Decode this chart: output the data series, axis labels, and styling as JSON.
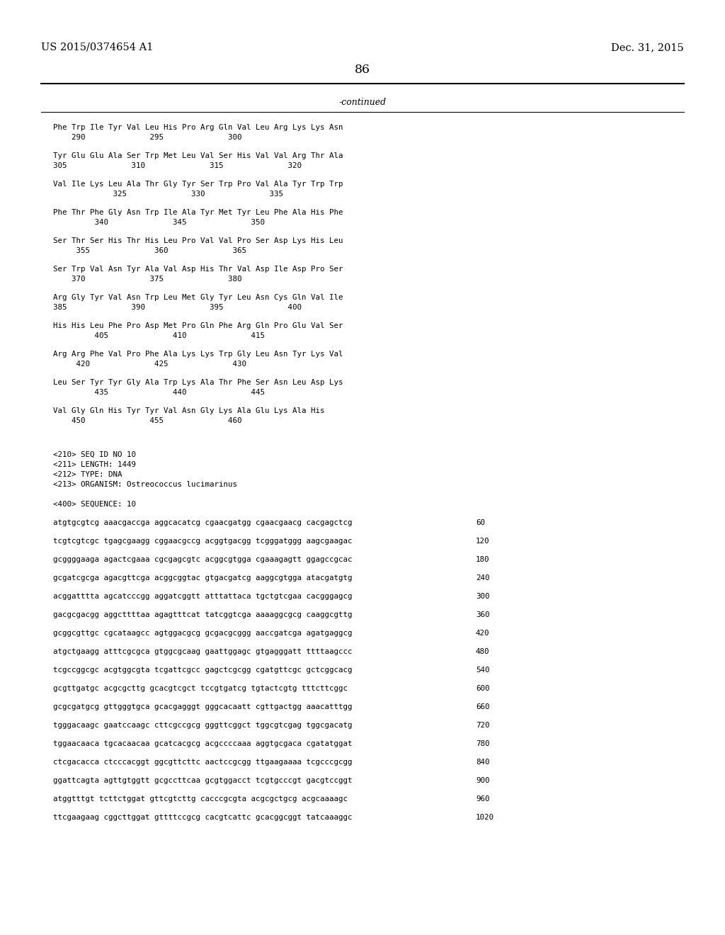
{
  "header_left": "US 2015/0374654 A1",
  "header_right": "Dec. 31, 2015",
  "page_number": "86",
  "continued_label": "-continued",
  "background_color": "#ffffff",
  "text_color": "#000000",
  "amino_lines": [
    [
      "Phe Trp Ile Tyr Val Leu His Pro Arg Gln Val Leu Arg Lys Lys Asn",
      "    290              295              300"
    ],
    [
      "Tyr Glu Glu Ala Ser Trp Met Leu Val Ser His Val Val Arg Thr Ala",
      "305              310              315              320"
    ],
    [
      "Val Ile Lys Leu Ala Thr Gly Tyr Ser Trp Pro Val Ala Tyr Trp Trp",
      "             325              330              335"
    ],
    [
      "Phe Thr Phe Gly Asn Trp Ile Ala Tyr Met Tyr Leu Phe Ala His Phe",
      "         340              345              350"
    ],
    [
      "Ser Thr Ser His Thr His Leu Pro Val Val Pro Ser Asp Lys His Leu",
      "     355              360              365"
    ],
    [
      "Ser Trp Val Asn Tyr Ala Val Asp His Thr Val Asp Ile Asp Pro Ser",
      "    370              375              380"
    ],
    [
      "Arg Gly Tyr Val Asn Trp Leu Met Gly Tyr Leu Asn Cys Gln Val Ile",
      "385              390              395              400"
    ],
    [
      "His His Leu Phe Pro Asp Met Pro Gln Phe Arg Gln Pro Glu Val Ser",
      "         405              410              415"
    ],
    [
      "Arg Arg Phe Val Pro Phe Ala Lys Lys Trp Gly Leu Asn Tyr Lys Val",
      "     420              425              430"
    ],
    [
      "Leu Ser Tyr Tyr Gly Ala Trp Lys Ala Thr Phe Ser Asn Leu Asp Lys",
      "         435              440              445"
    ],
    [
      "Val Gly Gln His Tyr Tyr Val Asn Gly Lys Ala Glu Lys Ala His",
      "    450              455              460"
    ]
  ],
  "seq_info": [
    "<210> SEQ ID NO 10",
    "<211> LENGTH: 1449",
    "<212> TYPE: DNA",
    "<213> ORGANISM: Ostreococcus lucimarinus"
  ],
  "seq_label": "<400> SEQUENCE: 10",
  "dna_lines": [
    [
      "atgtgcgtcg aaacgaccga aggcacatcg cgaacgatgg cgaacgaacg cacgagctcg",
      "60"
    ],
    [
      "tcgtcgtcgc tgagcgaagg cggaacgccg acggtgacgg tcgggatggg aagcgaagac",
      "120"
    ],
    [
      "gcggggaaga agactcgaaa cgcgagcgtc acggcgtgga cgaaagagtt ggagccgcac",
      "180"
    ],
    [
      "gcgatcgcga agacgttcga acggcggtac gtgacgatcg aaggcgtgga atacgatgtg",
      "240"
    ],
    [
      "acggatttta agcatcccgg aggatcggtt atttattaca tgctgtcgaa cacgggagcg",
      "300"
    ],
    [
      "gacgcgacgg aggcttttaa agagtttcat tatcggtcga aaaaggcgcg caaggcgttg",
      "360"
    ],
    [
      "gcggcgttgc cgcataagcc agtggacgcg gcgacgcggg aaccgatcga agatgaggcg",
      "420"
    ],
    [
      "atgctgaagg atttcgcgca gtggcgcaag gaattggagc gtgagggatt ttttaagccc",
      "480"
    ],
    [
      "tcgccggcgc acgtggcgta tcgattcgcc gagctcgcgg cgatgttcgc gctcggcacg",
      "540"
    ],
    [
      "gcgttgatgc acgcgcttg gcacgtcgct tccgtgatcg tgtactcgtg tttcttcggc",
      "600"
    ],
    [
      "gcgcgatgcg gttgggtgca gcacgagggt gggcacaatt cgttgactgg aaacatttgg",
      "660"
    ],
    [
      "tgggacaagc gaatccaagc cttcgccgcg gggttcggct tggcgtcgag tggcgacatg",
      "720"
    ],
    [
      "tggaacaaca tgcacaacaa gcatcacgcg acgccccaaa aggtgcgaca cgatatggat",
      "780"
    ],
    [
      "ctcgacacca ctcccacggt ggcgttcttc aactccgcgg ttgaagaaaa tcgcccgcgg",
      "840"
    ],
    [
      "ggattcagta agttgtggtt gcgccttcaa gcgtggacct tcgtgcccgt gacgtccggt",
      "900"
    ],
    [
      "atggtttgt tcttctggat gttcgtcttg cacccgcgta acgcgctgcg acgcaaaagc",
      "960"
    ],
    [
      "ttcgaagaag cggcttggat gttttccgcg cacgtcattc gcacggcggt tatcaaaggc",
      "1020"
    ]
  ]
}
